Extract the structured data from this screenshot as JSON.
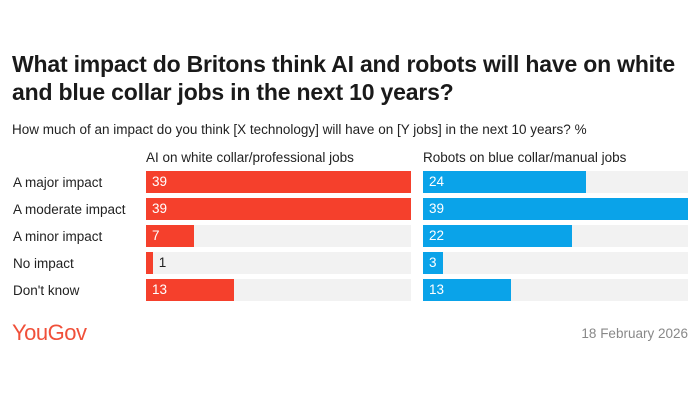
{
  "title": "What impact do Britons think AI and robots will have on white and blue collar jobs in the next 10 years?",
  "subtitle": "How much of an impact do you think [X technology] will have on [Y jobs] in the next 10 years? %",
  "logo": "YouGov",
  "date": "18 February 2026",
  "chart_data": {
    "type": "bar",
    "orientation": "horizontal",
    "title": "What impact do Britons think AI and robots will have on white and blue collar jobs in the next 10 years?",
    "categories": [
      "A major impact",
      "A moderate impact",
      "A minor impact",
      "No impact",
      "Don't know"
    ],
    "xlim": [
      0,
      39
    ],
    "series": [
      {
        "name": "AI on white collar/professional jobs",
        "values": [
          39,
          39,
          7,
          1,
          13
        ],
        "color": "#f5402c"
      },
      {
        "name": "Robots on blue collar/manual jobs",
        "values": [
          24,
          39,
          22,
          3,
          13
        ],
        "color": "#0aa3e9"
      }
    ]
  }
}
